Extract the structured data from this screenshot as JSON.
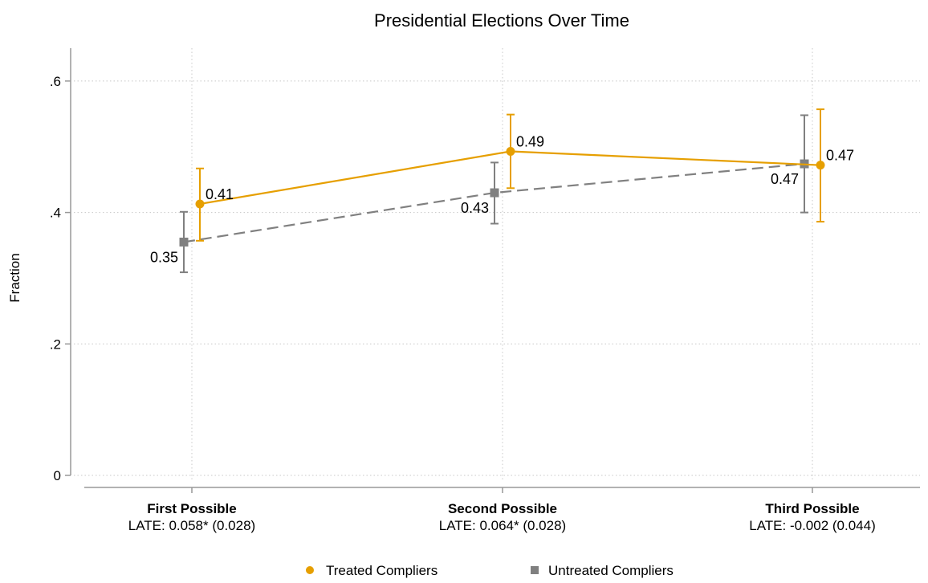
{
  "chart_data": {
    "type": "line",
    "title": "Presidential Elections Over Time",
    "xlabel": "",
    "ylabel": "Fraction",
    "ylim": [
      0,
      0.65
    ],
    "yticks": [
      0,
      0.2,
      0.4,
      0.6
    ],
    "ytick_labels": [
      "0",
      ".2",
      ".4",
      ".6"
    ],
    "grid": true,
    "legend_position": "bottom",
    "categories": [
      {
        "name": "First Possible",
        "late": "LATE: 0.058* (0.028)"
      },
      {
        "name": "Second Possible",
        "late": "LATE: 0.064* (0.028)"
      },
      {
        "name": "Third Possible",
        "late": "LATE: -0.002 (0.044)"
      }
    ],
    "series": [
      {
        "name": "Treated Compliers",
        "color": "#E69F00",
        "marker": "circle",
        "line_style": "solid",
        "values": [
          0.413,
          0.493,
          0.472
        ],
        "ci_low": [
          0.357,
          0.437,
          0.386
        ],
        "ci_high": [
          0.467,
          0.549,
          0.557
        ],
        "labels": [
          "0.41",
          "0.49",
          "0.47"
        ]
      },
      {
        "name": "Untreated Compliers",
        "color": "#808080",
        "marker": "square",
        "line_style": "dashed",
        "values": [
          0.355,
          0.43,
          0.474
        ],
        "ci_low": [
          0.309,
          0.383,
          0.4
        ],
        "ci_high": [
          0.401,
          0.476,
          0.548
        ],
        "labels": [
          "0.35",
          "0.43",
          "0.47"
        ]
      }
    ]
  }
}
